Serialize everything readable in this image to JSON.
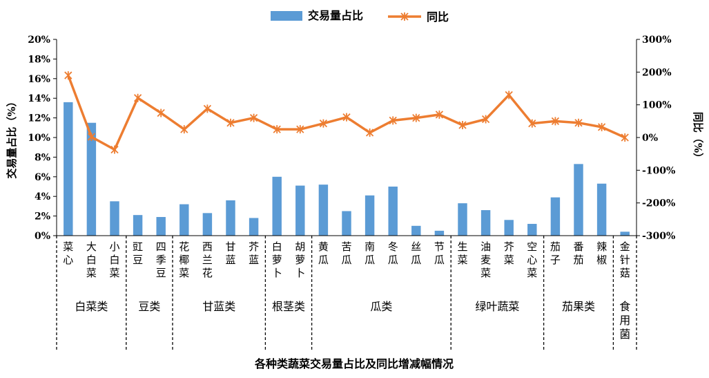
{
  "chart_data": {
    "type": "bar+line",
    "title": "各种类蔬菜交易量占比及同比增减幅情况",
    "categories": [
      "菜心",
      "大白菜",
      "小白菜",
      "豇豆",
      "四季豆",
      "花椰菜",
      "西兰花",
      "甘蓝",
      "芥蓝",
      "白萝卜",
      "胡萝卜",
      "黄瓜",
      "苦瓜",
      "南瓜",
      "冬瓜",
      "丝瓜",
      "节瓜",
      "生菜",
      "油麦菜",
      "芥菜",
      "空心菜",
      "茄子",
      "番茄",
      "辣椒",
      "金针菇"
    ],
    "groups": [
      {
        "name": "白菜类",
        "size": 3
      },
      {
        "name": "豆类",
        "size": 2
      },
      {
        "name": "甘蓝类",
        "size": 4
      },
      {
        "name": "根茎类",
        "size": 2
      },
      {
        "name": "瓜类",
        "size": 6
      },
      {
        "name": "绿叶蔬菜",
        "size": 4
      },
      {
        "name": "茄果类",
        "size": 3
      },
      {
        "name": "食用菌",
        "size": 1
      }
    ],
    "series": [
      {
        "name": "交易量占比",
        "type": "bar",
        "axis": "left",
        "color": "#5b9bd5",
        "values": [
          13.6,
          11.5,
          3.5,
          2.1,
          1.9,
          3.2,
          2.3,
          3.6,
          1.8,
          6.0,
          5.1,
          5.2,
          2.5,
          4.1,
          5.0,
          1.0,
          0.5,
          3.3,
          2.6,
          1.6,
          1.2,
          3.9,
          7.3,
          5.3,
          0.4
        ]
      },
      {
        "name": "同比",
        "type": "line",
        "axis": "right",
        "color": "#ed7d31",
        "values": [
          190,
          2,
          -37,
          121,
          75,
          25,
          88,
          45,
          60,
          25,
          25,
          43,
          62,
          15,
          52,
          60,
          70,
          38,
          56,
          130,
          43,
          50,
          45,
          32,
          0
        ]
      }
    ],
    "y_left": {
      "label": "交易量占比（%）",
      "min": 0,
      "max": 20,
      "step": 2,
      "unit": "%"
    },
    "y_right": {
      "label": "同比（%）",
      "min": -300,
      "max": 300,
      "step": 100,
      "unit": "%"
    },
    "legend": {
      "position": "top"
    }
  }
}
